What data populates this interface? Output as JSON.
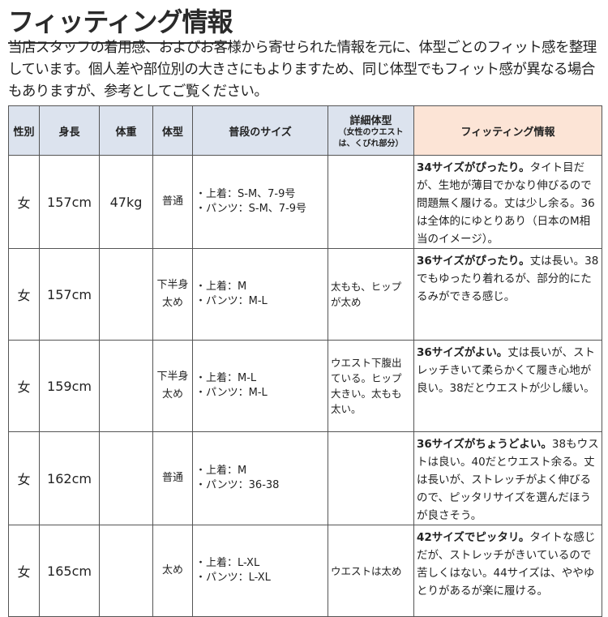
{
  "title": "フィッティング情報",
  "intro": "当店スタッフの着用感、およびお客様から寄せられた情報を元に、体型ごとのフィット感を整理しています。個人差や部位別の大きさにもよりますため、同じ体型でもフィット感が異なる場合もありますが、参考としてご覧ください。",
  "table": {
    "headers": {
      "gender": "性別",
      "height": "身長",
      "weight": "体重",
      "body_type": "体型",
      "usual_size": "普段のサイズ",
      "detail": "詳細体型",
      "detail_note": "（女性のウエストは、くびれ部分）",
      "fitting": "フィッティング情報"
    },
    "rows": [
      {
        "gender": "女",
        "height": "157cm",
        "weight": "47kg",
        "body_type": "普通",
        "top": "・上着：S-M、7-9号",
        "pants": "・パンツ：S-M、7-9号",
        "detail": "",
        "fit_bold": "34サイズがぴったり。",
        "fit_text": "タイト目だが、生地が薄目でかなり伸びるので問題無く履ける。丈は少し余る。36は全体的にゆとりあり（日本のM相当のイメージ）。"
      },
      {
        "gender": "女",
        "height": "157cm",
        "weight": "",
        "body_type": "下半身太め",
        "top": "・上着：M",
        "pants": "・パンツ：M-L",
        "detail": "太もも、ヒップが太め",
        "fit_bold": "36サイズがぴったり。",
        "fit_text": "丈は長い。38でもゆったり着れるが、部分的にたるみができる感じ。"
      },
      {
        "gender": "女",
        "height": "159cm",
        "weight": "",
        "body_type": "下半身太め",
        "top": "・上着：M-L",
        "pants": "・パンツ：M-L",
        "detail": "ウエスト下腹出ている。ヒップ大きい。太もも太い。",
        "fit_bold": "36サイズがよい。",
        "fit_text": "丈は長いが、ストレッチきいて柔らかくて履き心地が良い。38だとウエストが少し緩い。"
      },
      {
        "gender": "女",
        "height": "162cm",
        "weight": "",
        "body_type": "普通",
        "top": "・上着：M",
        "pants": "・パンツ：36-38",
        "detail": "",
        "fit_bold": "36サイズがちょうどよい。",
        "fit_text": "38もウストは良い。40だとウエスト余る。丈は長いが、ストレッチがよく伸びるので、ピッタリサイズを選んだほうが良さそう。"
      },
      {
        "gender": "女",
        "height": "165cm",
        "weight": "",
        "body_type": "太め",
        "top": "・上着：L-XL",
        "pants": "・パンツ：L-XL",
        "detail": "ウエストは太め",
        "fit_bold": "42サイズでピッタリ。",
        "fit_text": "タイトな感じだが、ストレッチがきいているので苦しくはない。44サイズは、ややゆとりがあるが楽に履ける。"
      }
    ]
  },
  "colors": {
    "header_bg": "#dce3ee",
    "fitting_header_bg": "#fce4d6",
    "border": "#555555"
  }
}
